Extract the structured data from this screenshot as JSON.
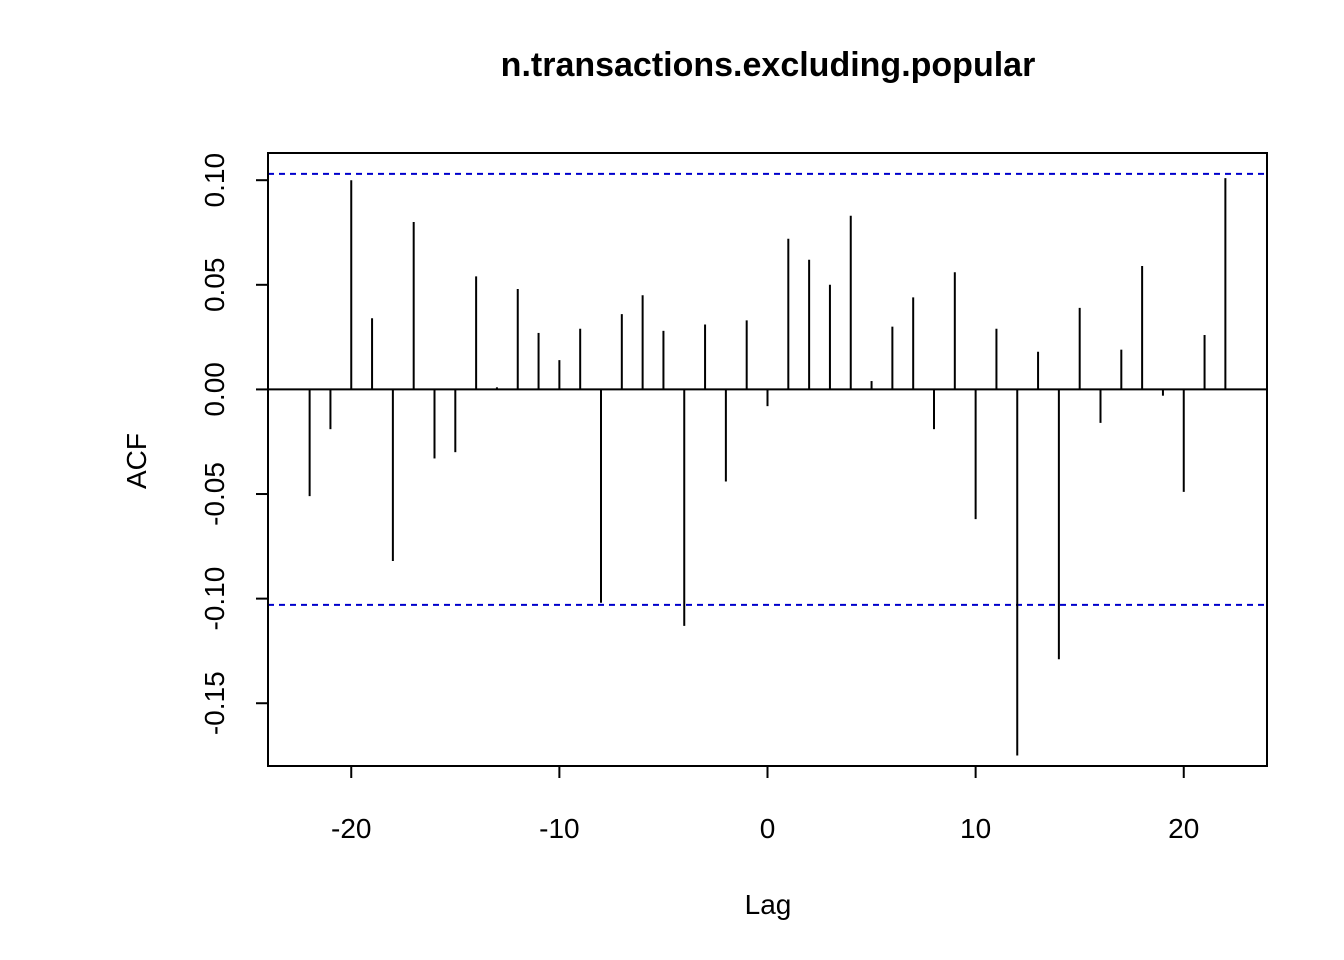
{
  "chart_data": {
    "type": "bar",
    "title": "n.transactions.excluding.popular",
    "xlabel": "Lag",
    "ylabel": "ACF",
    "xlim": [
      -24,
      24
    ],
    "ylim": [
      -0.18,
      0.113
    ],
    "x_ticks": [
      {
        "value": -20,
        "label": "-20"
      },
      {
        "value": -10,
        "label": "-10"
      },
      {
        "value": 0,
        "label": "0"
      },
      {
        "value": 10,
        "label": "10"
      },
      {
        "value": 20,
        "label": "20"
      }
    ],
    "y_ticks": [
      {
        "value": 0.1,
        "label": "0.10"
      },
      {
        "value": 0.05,
        "label": "0.05"
      },
      {
        "value": 0.0,
        "label": "0.00"
      },
      {
        "value": -0.05,
        "label": "-0.05"
      },
      {
        "value": -0.1,
        "label": "-0.10"
      },
      {
        "value": -0.15,
        "label": "-0.15"
      }
    ],
    "confidence_bound": 0.103,
    "confidence_color": "#0000cc",
    "spike_color": "#000000",
    "lags": [
      -22,
      -21,
      -20,
      -19,
      -18,
      -17,
      -16,
      -15,
      -14,
      -13,
      -12,
      -11,
      -10,
      -9,
      -8,
      -7,
      -6,
      -5,
      -4,
      -3,
      -2,
      -1,
      0,
      1,
      2,
      3,
      4,
      5,
      6,
      7,
      8,
      9,
      10,
      11,
      12,
      13,
      14,
      15,
      16,
      17,
      18,
      19,
      20,
      21,
      22
    ],
    "values": [
      -0.051,
      -0.019,
      0.1,
      0.034,
      -0.082,
      0.08,
      -0.033,
      -0.03,
      0.054,
      0.001,
      0.048,
      0.027,
      0.014,
      0.029,
      -0.102,
      0.036,
      0.045,
      0.028,
      -0.113,
      0.031,
      -0.044,
      0.033,
      -0.008,
      0.072,
      0.062,
      0.05,
      0.083,
      0.004,
      0.03,
      0.044,
      -0.019,
      0.056,
      -0.062,
      0.029,
      -0.175,
      0.018,
      -0.129,
      0.039,
      -0.016,
      0.019,
      0.059,
      -0.003,
      -0.049,
      0.026,
      0.101
    ]
  }
}
